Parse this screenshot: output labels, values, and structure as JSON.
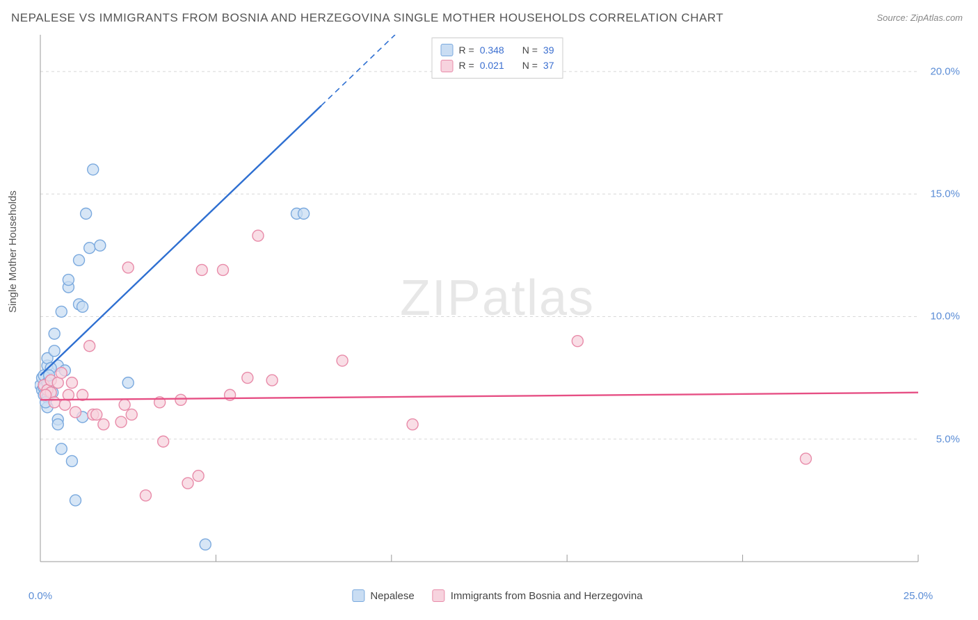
{
  "title": "NEPALESE VS IMMIGRANTS FROM BOSNIA AND HERZEGOVINA SINGLE MOTHER HOUSEHOLDS CORRELATION CHART",
  "source": "Source: ZipAtlas.com",
  "watermark": "ZIPatlas",
  "ylabel": "Single Mother Households",
  "chart": {
    "type": "scatter",
    "background_color": "#ffffff",
    "grid_color": "#d8d8d8",
    "axis_color": "#999999",
    "xlim": [
      0,
      25
    ],
    "ylim": [
      0,
      21.5
    ],
    "x_ticks": [
      0,
      5,
      10,
      15,
      20,
      25
    ],
    "x_tick_labels": [
      "0.0%",
      "",
      "",
      "",
      "",
      "25.0%"
    ],
    "y_ticks": [
      5,
      10,
      15,
      20
    ],
    "y_tick_labels": [
      "5.0%",
      "10.0%",
      "15.0%",
      "20.0%"
    ],
    "marker_radius": 8,
    "marker_stroke_width": 1.4,
    "line_width": 2.4,
    "title_fontsize": 17,
    "label_fontsize": 15,
    "tick_fontsize": 15,
    "tick_label_color": "#5b8dd6",
    "series": [
      {
        "name": "Nepalese",
        "fill": "#c9ddf3",
        "stroke": "#7aa9de",
        "line_color": "#2e6fd1",
        "trend": {
          "y_at_xmin": 7.6,
          "y_at_xmax": 42.0,
          "dash_after_x": 8.0
        },
        "R": "0.348",
        "N": "39",
        "points": [
          [
            0.0,
            7.2
          ],
          [
            0.05,
            7.0
          ],
          [
            0.05,
            7.5
          ],
          [
            0.1,
            7.1
          ],
          [
            0.1,
            7.6
          ],
          [
            0.1,
            6.8
          ],
          [
            0.2,
            8.0
          ],
          [
            0.2,
            8.3
          ],
          [
            0.2,
            6.7
          ],
          [
            0.2,
            6.3
          ],
          [
            0.2,
            7.3
          ],
          [
            0.4,
            9.3
          ],
          [
            0.4,
            8.6
          ],
          [
            0.5,
            8.0
          ],
          [
            0.5,
            5.8
          ],
          [
            0.5,
            5.6
          ],
          [
            0.6,
            4.6
          ],
          [
            0.6,
            10.2
          ],
          [
            0.7,
            7.8
          ],
          [
            0.8,
            11.2
          ],
          [
            0.8,
            11.5
          ],
          [
            0.9,
            4.1
          ],
          [
            1.0,
            2.5
          ],
          [
            1.1,
            12.3
          ],
          [
            1.1,
            10.5
          ],
          [
            1.2,
            10.4
          ],
          [
            1.2,
            5.9
          ],
          [
            1.3,
            14.2
          ],
          [
            1.4,
            12.8
          ],
          [
            1.5,
            16.0
          ],
          [
            1.7,
            12.9
          ],
          [
            2.5,
            7.3
          ],
          [
            4.7,
            0.7
          ],
          [
            7.3,
            14.2
          ],
          [
            7.5,
            14.2
          ],
          [
            0.3,
            7.9
          ],
          [
            0.15,
            6.5
          ],
          [
            0.25,
            7.6
          ],
          [
            0.35,
            6.9
          ]
        ]
      },
      {
        "name": "Immigrants from Bosnia and Herzegovina",
        "fill": "#f7d3de",
        "stroke": "#e88ba9",
        "line_color": "#e64f84",
        "trend": {
          "y_at_xmin": 6.6,
          "y_at_xmax": 6.9,
          "dash_after_x": 25.0
        },
        "R": "0.021",
        "N": "37",
        "points": [
          [
            0.1,
            7.2
          ],
          [
            0.2,
            7.0
          ],
          [
            0.3,
            6.9
          ],
          [
            0.3,
            7.4
          ],
          [
            0.4,
            6.5
          ],
          [
            0.5,
            7.3
          ],
          [
            0.6,
            7.7
          ],
          [
            0.7,
            6.4
          ],
          [
            0.8,
            6.8
          ],
          [
            0.9,
            7.3
          ],
          [
            1.0,
            6.1
          ],
          [
            1.2,
            6.8
          ],
          [
            1.4,
            8.8
          ],
          [
            1.5,
            6.0
          ],
          [
            1.6,
            6.0
          ],
          [
            1.8,
            5.6
          ],
          [
            2.3,
            5.7
          ],
          [
            2.4,
            6.4
          ],
          [
            2.5,
            12.0
          ],
          [
            2.6,
            6.0
          ],
          [
            3.0,
            2.7
          ],
          [
            3.4,
            6.5
          ],
          [
            3.5,
            4.9
          ],
          [
            4.0,
            6.6
          ],
          [
            4.2,
            3.2
          ],
          [
            4.5,
            3.5
          ],
          [
            4.6,
            11.9
          ],
          [
            5.2,
            11.9
          ],
          [
            5.4,
            6.8
          ],
          [
            5.9,
            7.5
          ],
          [
            6.2,
            13.3
          ],
          [
            6.6,
            7.4
          ],
          [
            8.6,
            8.2
          ],
          [
            10.6,
            5.6
          ],
          [
            15.3,
            9.0
          ],
          [
            21.8,
            4.2
          ],
          [
            0.15,
            6.8
          ]
        ]
      }
    ]
  },
  "stats_box": {
    "labels": {
      "R": "R =",
      "N": "N ="
    }
  },
  "legend": {
    "series1_label": "Nepalese",
    "series2_label": "Immigrants from Bosnia and Herzegovina"
  }
}
